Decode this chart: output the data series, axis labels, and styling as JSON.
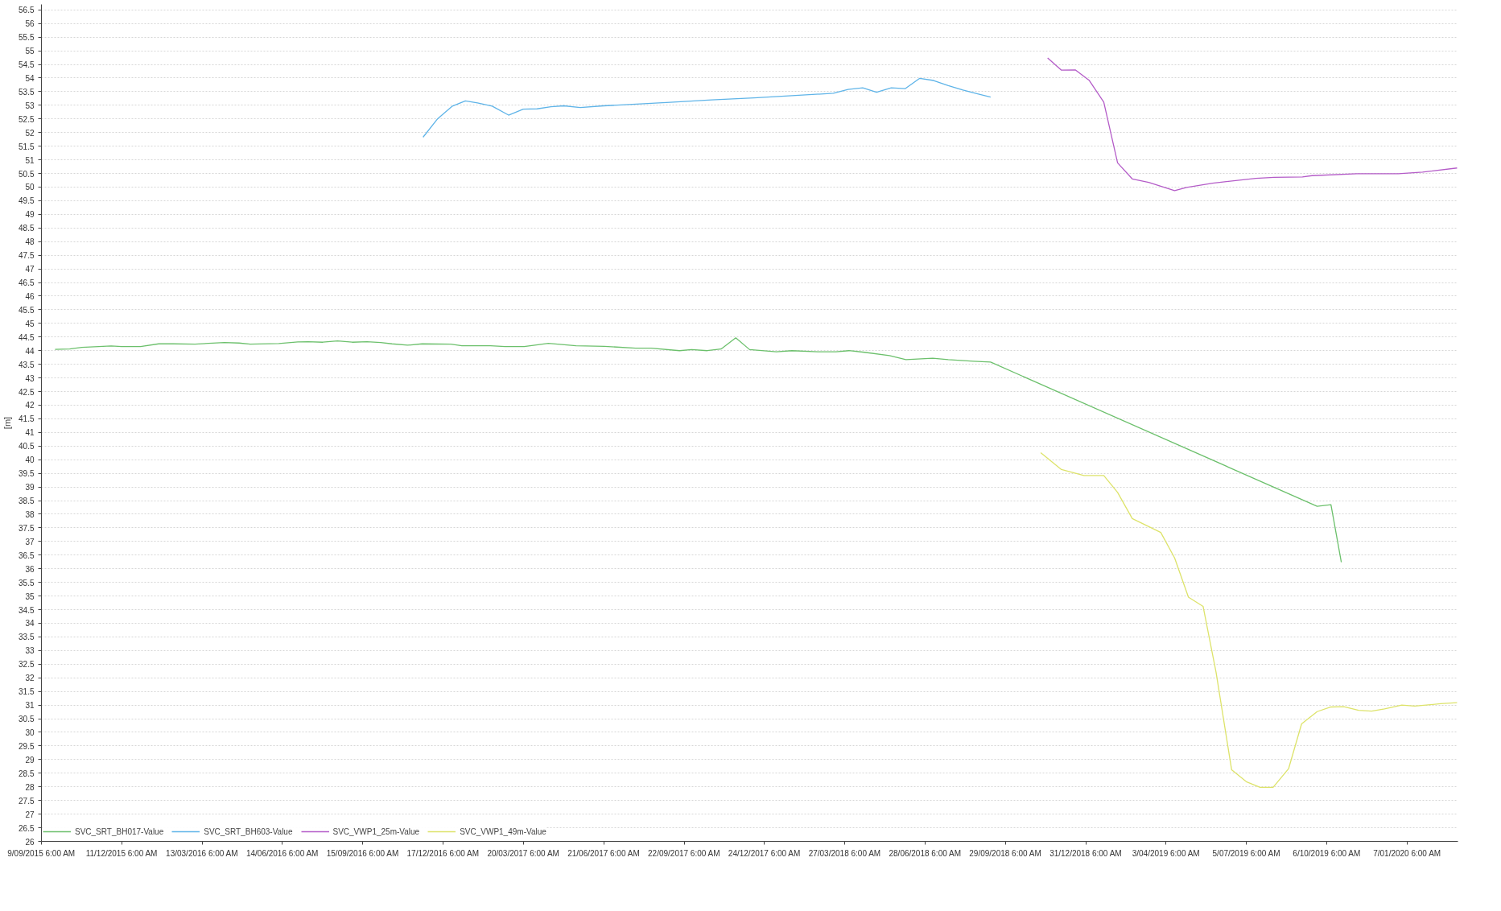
{
  "chart_data": {
    "type": "line",
    "ylabel": "[m]",
    "xlim": [
      "2015-09-09T06:00",
      "2020-03-06"
    ],
    "ylim": [
      26,
      56.7
    ],
    "xticks": [
      {
        "value": "2015-09-09T06:00",
        "label": "9/09/2015 6:00 AM"
      },
      {
        "value": "2015-12-11T06:00",
        "label": "11/12/2015 6:00 AM"
      },
      {
        "value": "2016-03-13T06:00",
        "label": "13/03/2016 6:00 AM"
      },
      {
        "value": "2016-06-14T06:00",
        "label": "14/06/2016 6:00 AM"
      },
      {
        "value": "2016-09-15T06:00",
        "label": "15/09/2016 6:00 AM"
      },
      {
        "value": "2016-12-17T06:00",
        "label": "17/12/2016 6:00 AM"
      },
      {
        "value": "2017-03-20T06:00",
        "label": "20/03/2017 6:00 AM"
      },
      {
        "value": "2017-06-21T06:00",
        "label": "21/06/2017 6:00 AM"
      },
      {
        "value": "2017-09-22T06:00",
        "label": "22/09/2017 6:00 AM"
      },
      {
        "value": "2017-12-24T06:00",
        "label": "24/12/2017 6:00 AM"
      },
      {
        "value": "2018-03-27T06:00",
        "label": "27/03/2018 6:00 AM"
      },
      {
        "value": "2018-06-28T06:00",
        "label": "28/06/2018 6:00 AM"
      },
      {
        "value": "2018-09-29T06:00",
        "label": "29/09/2018 6:00 AM"
      },
      {
        "value": "2018-12-31T06:00",
        "label": "31/12/2018 6:00 AM"
      },
      {
        "value": "2019-04-03T06:00",
        "label": "3/04/2019 6:00 AM"
      },
      {
        "value": "2019-07-05T06:00",
        "label": "5/07/2019 6:00 AM"
      },
      {
        "value": "2019-10-06T06:00",
        "label": "6/10/2019 6:00 AM"
      },
      {
        "value": "2020-01-07T06:00",
        "label": "7/01/2020 6:00 AM"
      }
    ],
    "yticks": [
      26,
      26.5,
      27,
      27.5,
      28,
      28.5,
      29,
      29.5,
      30,
      30.5,
      31,
      31.5,
      32,
      32.5,
      33,
      33.5,
      34,
      34.5,
      35,
      35.5,
      36,
      36.5,
      37,
      37.5,
      38,
      38.5,
      39,
      39.5,
      40,
      40.5,
      41,
      41.5,
      42,
      42.5,
      43,
      43.5,
      44,
      44.5,
      45,
      45.5,
      46,
      46.5,
      47,
      47.5,
      48,
      48.5,
      49,
      49.5,
      50,
      50.5,
      51,
      51.5,
      52,
      52.5,
      53,
      53.5,
      54,
      54.5,
      55,
      55.5,
      56,
      56.5
    ],
    "grid": "y",
    "legend": "bottom left",
    "series": [
      {
        "name": "SVC_SRT_BH017-Value",
        "color": "#6cc06c",
        "x": [
          "2015-09-25",
          "2015-10-12",
          "2015-10-26",
          "2015-11-29",
          "2015-12-11",
          "2016-01-02",
          "2016-01-23",
          "2016-02-09",
          "2016-03-05",
          "2016-04-08",
          "2016-04-25",
          "2016-05-08",
          "2016-06-10",
          "2016-07-02",
          "2016-07-14",
          "2016-07-31",
          "2016-08-17",
          "2016-09-03",
          "2016-09-20",
          "2016-10-06",
          "2016-10-19",
          "2016-11-06",
          "2016-11-23",
          "2016-12-26",
          "2017-01-08",
          "2017-02-10",
          "2017-02-27",
          "2017-03-21",
          "2017-04-06",
          "2017-04-18",
          "2017-05-20",
          "2017-06-22",
          "2017-07-28",
          "2017-08-15",
          "2017-09-17",
          "2017-10-01",
          "2017-10-19",
          "2017-11-04",
          "2017-11-21",
          "2017-12-07",
          "2018-01-07",
          "2018-01-25",
          "2018-02-24",
          "2018-03-17",
          "2018-04-01",
          "2018-04-19",
          "2018-05-18",
          "2018-06-06",
          "2018-07-07",
          "2018-07-25",
          "2018-08-23",
          "2018-09-12",
          "2019-09-25",
          "2019-10-11",
          "2019-10-23"
        ],
        "values": [
          44.05,
          44.06,
          44.12,
          44.17,
          44.15,
          44.15,
          44.25,
          44.25,
          44.24,
          44.3,
          44.28,
          44.24,
          44.26,
          44.32,
          44.33,
          44.31,
          44.36,
          44.31,
          44.33,
          44.3,
          44.25,
          44.2,
          44.25,
          44.24,
          44.18,
          44.18,
          44.15,
          44.15,
          44.22,
          44.27,
          44.18,
          44.16,
          44.09,
          44.09,
          44.0,
          44.04,
          44.0,
          44.06,
          44.47,
          44.04,
          43.96,
          44.0,
          43.96,
          43.96,
          44.0,
          43.94,
          43.82,
          43.67,
          43.72,
          43.67,
          43.61,
          43.58,
          38.29,
          38.35,
          36.24
        ]
      },
      {
        "name": "SVC_SRT_BH603-Value",
        "color": "#5fb4e8",
        "x": [
          "2016-11-24",
          "2016-12-11",
          "2016-12-28",
          "2017-01-12",
          "2017-01-26",
          "2017-02-12",
          "2017-03-03",
          "2017-03-20",
          "2017-04-05",
          "2017-04-21",
          "2017-05-06",
          "2017-05-25",
          "2017-06-21",
          "2017-07-20",
          "2017-09-06",
          "2017-10-24",
          "2017-12-12",
          "2018-01-29",
          "2018-03-14",
          "2018-03-31",
          "2018-04-17",
          "2018-05-03",
          "2018-05-20",
          "2018-06-05",
          "2018-06-22",
          "2018-07-08",
          "2018-07-25",
          "2018-08-11",
          "2018-08-28",
          "2018-09-12"
        ],
        "values": [
          51.83,
          52.51,
          52.97,
          53.16,
          53.09,
          52.97,
          52.64,
          52.86,
          52.87,
          52.95,
          52.98,
          52.92,
          52.98,
          53.03,
          53.11,
          53.2,
          53.27,
          53.36,
          53.44,
          53.58,
          53.64,
          53.48,
          53.64,
          53.61,
          53.99,
          53.91,
          53.72,
          53.56,
          53.42,
          53.3
        ]
      },
      {
        "name": "SVC_VWP1_25m-Value",
        "color": "#b45cc8",
        "x": [
          "2018-11-17",
          "2018-12-03",
          "2018-12-19",
          "2019-01-04",
          "2019-01-21",
          "2019-02-06",
          "2019-02-23",
          "2019-03-14",
          "2019-04-13",
          "2019-04-27",
          "2019-05-27",
          "2019-06-12",
          "2019-07-16",
          "2019-08-06",
          "2019-09-08",
          "2019-09-19",
          "2019-11-10",
          "2019-12-28",
          "2020-01-25",
          "2020-03-05"
        ],
        "values": [
          54.74,
          54.29,
          54.3,
          53.92,
          53.12,
          50.89,
          50.3,
          50.17,
          49.87,
          49.99,
          50.14,
          50.2,
          50.32,
          50.36,
          50.37,
          50.42,
          50.49,
          50.49,
          50.55,
          50.7
        ]
      },
      {
        "name": "SVC_VWP1_49m-Value",
        "color": "#dde36a",
        "x": [
          "2018-11-09",
          "2018-12-03",
          "2018-12-29",
          "2019-01-21",
          "2019-02-06",
          "2019-02-23",
          "2019-03-28",
          "2019-04-13",
          "2019-04-29",
          "2019-05-16",
          "2019-05-31",
          "2019-06-18",
          "2019-07-05",
          "2019-07-21",
          "2019-08-05",
          "2019-08-23",
          "2019-09-07",
          "2019-09-25",
          "2019-10-11",
          "2019-10-26",
          "2019-11-12",
          "2019-11-27",
          "2019-12-12",
          "2020-01-01",
          "2020-01-16",
          "2020-02-15",
          "2020-03-05"
        ],
        "values": [
          40.26,
          39.64,
          39.42,
          39.42,
          38.8,
          37.84,
          37.33,
          36.4,
          34.96,
          34.62,
          32.2,
          28.63,
          28.19,
          27.98,
          27.98,
          28.67,
          30.31,
          30.76,
          30.93,
          30.94,
          30.81,
          30.78,
          30.86,
          31.0,
          30.96,
          31.05,
          31.09
        ]
      }
    ]
  }
}
